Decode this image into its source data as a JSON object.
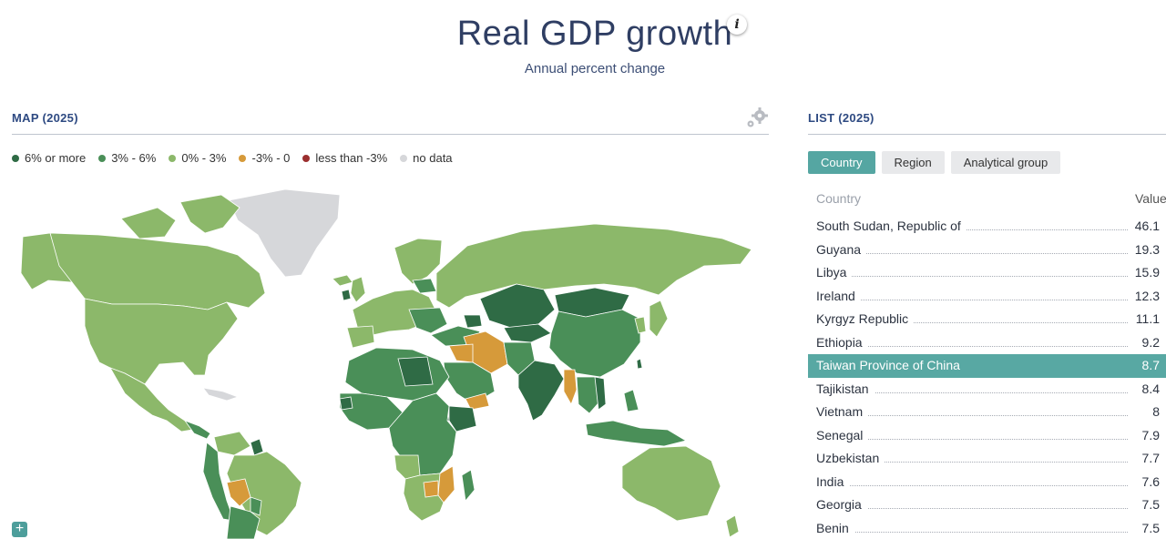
{
  "header": {
    "title": "Real GDP growth",
    "subtitle": "Annual percent change"
  },
  "map_panel": {
    "title": "MAP (2025)",
    "legend": [
      {
        "label": "6% or more",
        "color": "#2f6b45"
      },
      {
        "label": "3% - 6%",
        "color": "#4a8f58"
      },
      {
        "label": "0% - 3%",
        "color": "#8cb86a"
      },
      {
        "label": "-3% - 0",
        "color": "#d69a3a"
      },
      {
        "label": "less than -3%",
        "color": "#9b2f2f"
      },
      {
        "label": "no data",
        "color": "#d6d7da"
      }
    ]
  },
  "list_panel": {
    "title": "LIST (2025)",
    "tabs": [
      {
        "label": "Country",
        "active": true
      },
      {
        "label": "Region",
        "active": false
      },
      {
        "label": "Analytical group",
        "active": false
      }
    ],
    "column_country": "Country",
    "column_value": "Value",
    "rows": [
      {
        "country": "South Sudan, Republic of",
        "value": "46.1"
      },
      {
        "country": "Guyana",
        "value": "19.3"
      },
      {
        "country": "Libya",
        "value": "15.9"
      },
      {
        "country": "Ireland",
        "value": "12.3"
      },
      {
        "country": "Kyrgyz Republic",
        "value": "11.1"
      },
      {
        "country": "Ethiopia",
        "value": "9.2"
      },
      {
        "country": "Taiwan Province of China",
        "value": "8.7",
        "highlighted": true
      },
      {
        "country": "Tajikistan",
        "value": "8.4"
      },
      {
        "country": "Vietnam",
        "value": "8"
      },
      {
        "country": "Senegal",
        "value": "7.9"
      },
      {
        "country": "Uzbekistan",
        "value": "7.7"
      },
      {
        "country": "India",
        "value": "7.6"
      },
      {
        "country": "Georgia",
        "value": "7.5"
      },
      {
        "country": "Benin",
        "value": "7.5"
      }
    ]
  }
}
